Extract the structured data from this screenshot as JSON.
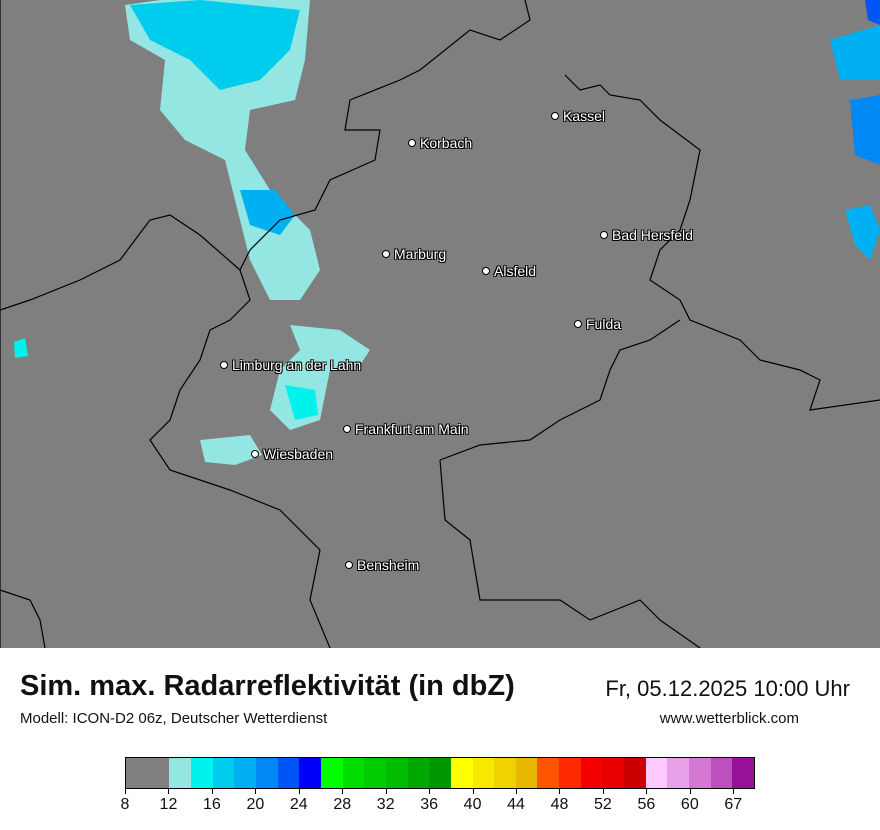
{
  "header": {
    "title": "Sim. max. Radarreflektivität (in dbZ)",
    "subtitle": "Modell: ICON-D2 06z, Deutscher Wetterdienst",
    "datetime": "Fr, 05.12.2025 10:00 Uhr",
    "website": "www.wetterblick.com"
  },
  "map": {
    "background_color": "#7f7f7f",
    "precip_colors": [
      "#93e6e2",
      "#00f2ec",
      "#00cdee",
      "#00b0f2",
      "#0088f4"
    ],
    "cities": [
      {
        "name": "Kassel"
      },
      {
        "name": "Korbach"
      },
      {
        "name": "Bad Hersfeld"
      },
      {
        "name": "Marburg"
      },
      {
        "name": "Alsfeld"
      },
      {
        "name": "Fulda"
      },
      {
        "name": "Limburg an der Lahn"
      },
      {
        "name": "Frankfurt am Main"
      },
      {
        "name": "Wiesbaden"
      },
      {
        "name": "Bensheim"
      }
    ]
  },
  "legend": {
    "unit": "dbZ",
    "tick_labels": [
      "8",
      "12",
      "16",
      "20",
      "24",
      "28",
      "32",
      "36",
      "40",
      "44",
      "48",
      "52",
      "56",
      "60",
      "67"
    ],
    "segments": [
      {
        "from": 8,
        "color": "#7f7f7f"
      },
      {
        "from": 12,
        "color": "#93e6e2"
      },
      {
        "from": 14,
        "color": "#00f2ec"
      },
      {
        "from": 16,
        "color": "#00cdee"
      },
      {
        "from": 18,
        "color": "#00b0f2"
      },
      {
        "from": 20,
        "color": "#0088f4"
      },
      {
        "from": 22,
        "color": "#0055f6"
      },
      {
        "from": 24,
        "color": "#0000f6"
      },
      {
        "from": 26,
        "color": "#00ff00"
      },
      {
        "from": 28,
        "color": "#00de00"
      },
      {
        "from": 30,
        "color": "#00cb00"
      },
      {
        "from": 32,
        "color": "#00bb00"
      },
      {
        "from": 34,
        "color": "#00a800"
      },
      {
        "from": 36,
        "color": "#009600"
      },
      {
        "from": 38,
        "color": "#ffff00"
      },
      {
        "from": 40,
        "color": "#f8e800"
      },
      {
        "from": 42,
        "color": "#f0d200"
      },
      {
        "from": 44,
        "color": "#e8b800"
      },
      {
        "from": 46,
        "color": "#ff5400"
      },
      {
        "from": 48,
        "color": "#ff2a00"
      },
      {
        "from": 50,
        "color": "#f50000"
      },
      {
        "from": 52,
        "color": "#e80000"
      },
      {
        "from": 54,
        "color": "#cc0000"
      },
      {
        "from": 56,
        "color": "#ffc8ff"
      },
      {
        "from": 58,
        "color": "#e8a0e8"
      },
      {
        "from": 60,
        "color": "#d478d4"
      },
      {
        "from": 62,
        "color": "#bc50bc"
      },
      {
        "from": 64,
        "color": "#981098"
      }
    ]
  }
}
